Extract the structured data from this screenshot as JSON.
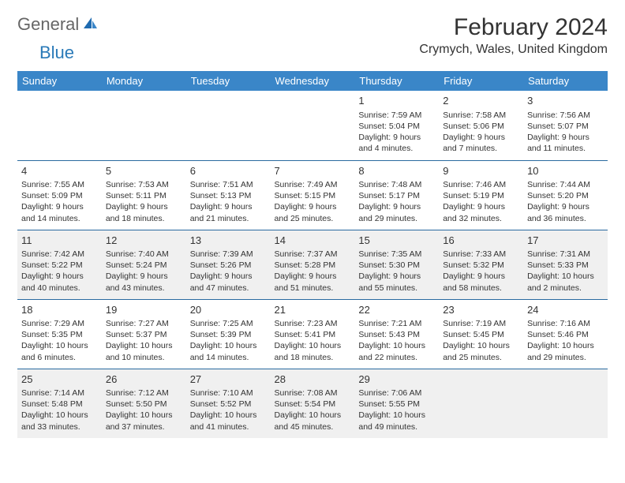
{
  "logo": {
    "word1": "General",
    "word2": "Blue"
  },
  "title": "February 2024",
  "location": "Crymych, Wales, United Kingdom",
  "colors": {
    "header_bg": "#3a86c8",
    "header_text": "#ffffff",
    "row_border": "#2a6aa0",
    "shade_bg": "#f0f0f0",
    "logo_gray": "#666666",
    "logo_blue": "#2a7ab8",
    "text": "#333333",
    "background": "#ffffff"
  },
  "typography": {
    "title_fontsize": 30,
    "location_fontsize": 16,
    "header_fontsize": 13,
    "daynum_fontsize": 13,
    "cell_fontsize": 10.5
  },
  "day_headers": [
    "Sunday",
    "Monday",
    "Tuesday",
    "Wednesday",
    "Thursday",
    "Friday",
    "Saturday"
  ],
  "weeks": [
    {
      "shaded": false,
      "days": [
        null,
        null,
        null,
        null,
        {
          "n": "1",
          "sunrise": "Sunrise: 7:59 AM",
          "sunset": "Sunset: 5:04 PM",
          "day1": "Daylight: 9 hours",
          "day2": "and 4 minutes."
        },
        {
          "n": "2",
          "sunrise": "Sunrise: 7:58 AM",
          "sunset": "Sunset: 5:06 PM",
          "day1": "Daylight: 9 hours",
          "day2": "and 7 minutes."
        },
        {
          "n": "3",
          "sunrise": "Sunrise: 7:56 AM",
          "sunset": "Sunset: 5:07 PM",
          "day1": "Daylight: 9 hours",
          "day2": "and 11 minutes."
        }
      ]
    },
    {
      "shaded": false,
      "days": [
        {
          "n": "4",
          "sunrise": "Sunrise: 7:55 AM",
          "sunset": "Sunset: 5:09 PM",
          "day1": "Daylight: 9 hours",
          "day2": "and 14 minutes."
        },
        {
          "n": "5",
          "sunrise": "Sunrise: 7:53 AM",
          "sunset": "Sunset: 5:11 PM",
          "day1": "Daylight: 9 hours",
          "day2": "and 18 minutes."
        },
        {
          "n": "6",
          "sunrise": "Sunrise: 7:51 AM",
          "sunset": "Sunset: 5:13 PM",
          "day1": "Daylight: 9 hours",
          "day2": "and 21 minutes."
        },
        {
          "n": "7",
          "sunrise": "Sunrise: 7:49 AM",
          "sunset": "Sunset: 5:15 PM",
          "day1": "Daylight: 9 hours",
          "day2": "and 25 minutes."
        },
        {
          "n": "8",
          "sunrise": "Sunrise: 7:48 AM",
          "sunset": "Sunset: 5:17 PM",
          "day1": "Daylight: 9 hours",
          "day2": "and 29 minutes."
        },
        {
          "n": "9",
          "sunrise": "Sunrise: 7:46 AM",
          "sunset": "Sunset: 5:19 PM",
          "day1": "Daylight: 9 hours",
          "day2": "and 32 minutes."
        },
        {
          "n": "10",
          "sunrise": "Sunrise: 7:44 AM",
          "sunset": "Sunset: 5:20 PM",
          "day1": "Daylight: 9 hours",
          "day2": "and 36 minutes."
        }
      ]
    },
    {
      "shaded": true,
      "days": [
        {
          "n": "11",
          "sunrise": "Sunrise: 7:42 AM",
          "sunset": "Sunset: 5:22 PM",
          "day1": "Daylight: 9 hours",
          "day2": "and 40 minutes."
        },
        {
          "n": "12",
          "sunrise": "Sunrise: 7:40 AM",
          "sunset": "Sunset: 5:24 PM",
          "day1": "Daylight: 9 hours",
          "day2": "and 43 minutes."
        },
        {
          "n": "13",
          "sunrise": "Sunrise: 7:39 AM",
          "sunset": "Sunset: 5:26 PM",
          "day1": "Daylight: 9 hours",
          "day2": "and 47 minutes."
        },
        {
          "n": "14",
          "sunrise": "Sunrise: 7:37 AM",
          "sunset": "Sunset: 5:28 PM",
          "day1": "Daylight: 9 hours",
          "day2": "and 51 minutes."
        },
        {
          "n": "15",
          "sunrise": "Sunrise: 7:35 AM",
          "sunset": "Sunset: 5:30 PM",
          "day1": "Daylight: 9 hours",
          "day2": "and 55 minutes."
        },
        {
          "n": "16",
          "sunrise": "Sunrise: 7:33 AM",
          "sunset": "Sunset: 5:32 PM",
          "day1": "Daylight: 9 hours",
          "day2": "and 58 minutes."
        },
        {
          "n": "17",
          "sunrise": "Sunrise: 7:31 AM",
          "sunset": "Sunset: 5:33 PM",
          "day1": "Daylight: 10 hours",
          "day2": "and 2 minutes."
        }
      ]
    },
    {
      "shaded": false,
      "days": [
        {
          "n": "18",
          "sunrise": "Sunrise: 7:29 AM",
          "sunset": "Sunset: 5:35 PM",
          "day1": "Daylight: 10 hours",
          "day2": "and 6 minutes."
        },
        {
          "n": "19",
          "sunrise": "Sunrise: 7:27 AM",
          "sunset": "Sunset: 5:37 PM",
          "day1": "Daylight: 10 hours",
          "day2": "and 10 minutes."
        },
        {
          "n": "20",
          "sunrise": "Sunrise: 7:25 AM",
          "sunset": "Sunset: 5:39 PM",
          "day1": "Daylight: 10 hours",
          "day2": "and 14 minutes."
        },
        {
          "n": "21",
          "sunrise": "Sunrise: 7:23 AM",
          "sunset": "Sunset: 5:41 PM",
          "day1": "Daylight: 10 hours",
          "day2": "and 18 minutes."
        },
        {
          "n": "22",
          "sunrise": "Sunrise: 7:21 AM",
          "sunset": "Sunset: 5:43 PM",
          "day1": "Daylight: 10 hours",
          "day2": "and 22 minutes."
        },
        {
          "n": "23",
          "sunrise": "Sunrise: 7:19 AM",
          "sunset": "Sunset: 5:45 PM",
          "day1": "Daylight: 10 hours",
          "day2": "and 25 minutes."
        },
        {
          "n": "24",
          "sunrise": "Sunrise: 7:16 AM",
          "sunset": "Sunset: 5:46 PM",
          "day1": "Daylight: 10 hours",
          "day2": "and 29 minutes."
        }
      ]
    },
    {
      "shaded": true,
      "days": [
        {
          "n": "25",
          "sunrise": "Sunrise: 7:14 AM",
          "sunset": "Sunset: 5:48 PM",
          "day1": "Daylight: 10 hours",
          "day2": "and 33 minutes."
        },
        {
          "n": "26",
          "sunrise": "Sunrise: 7:12 AM",
          "sunset": "Sunset: 5:50 PM",
          "day1": "Daylight: 10 hours",
          "day2": "and 37 minutes."
        },
        {
          "n": "27",
          "sunrise": "Sunrise: 7:10 AM",
          "sunset": "Sunset: 5:52 PM",
          "day1": "Daylight: 10 hours",
          "day2": "and 41 minutes."
        },
        {
          "n": "28",
          "sunrise": "Sunrise: 7:08 AM",
          "sunset": "Sunset: 5:54 PM",
          "day1": "Daylight: 10 hours",
          "day2": "and 45 minutes."
        },
        {
          "n": "29",
          "sunrise": "Sunrise: 7:06 AM",
          "sunset": "Sunset: 5:55 PM",
          "day1": "Daylight: 10 hours",
          "day2": "and 49 minutes."
        },
        null,
        null
      ]
    }
  ]
}
